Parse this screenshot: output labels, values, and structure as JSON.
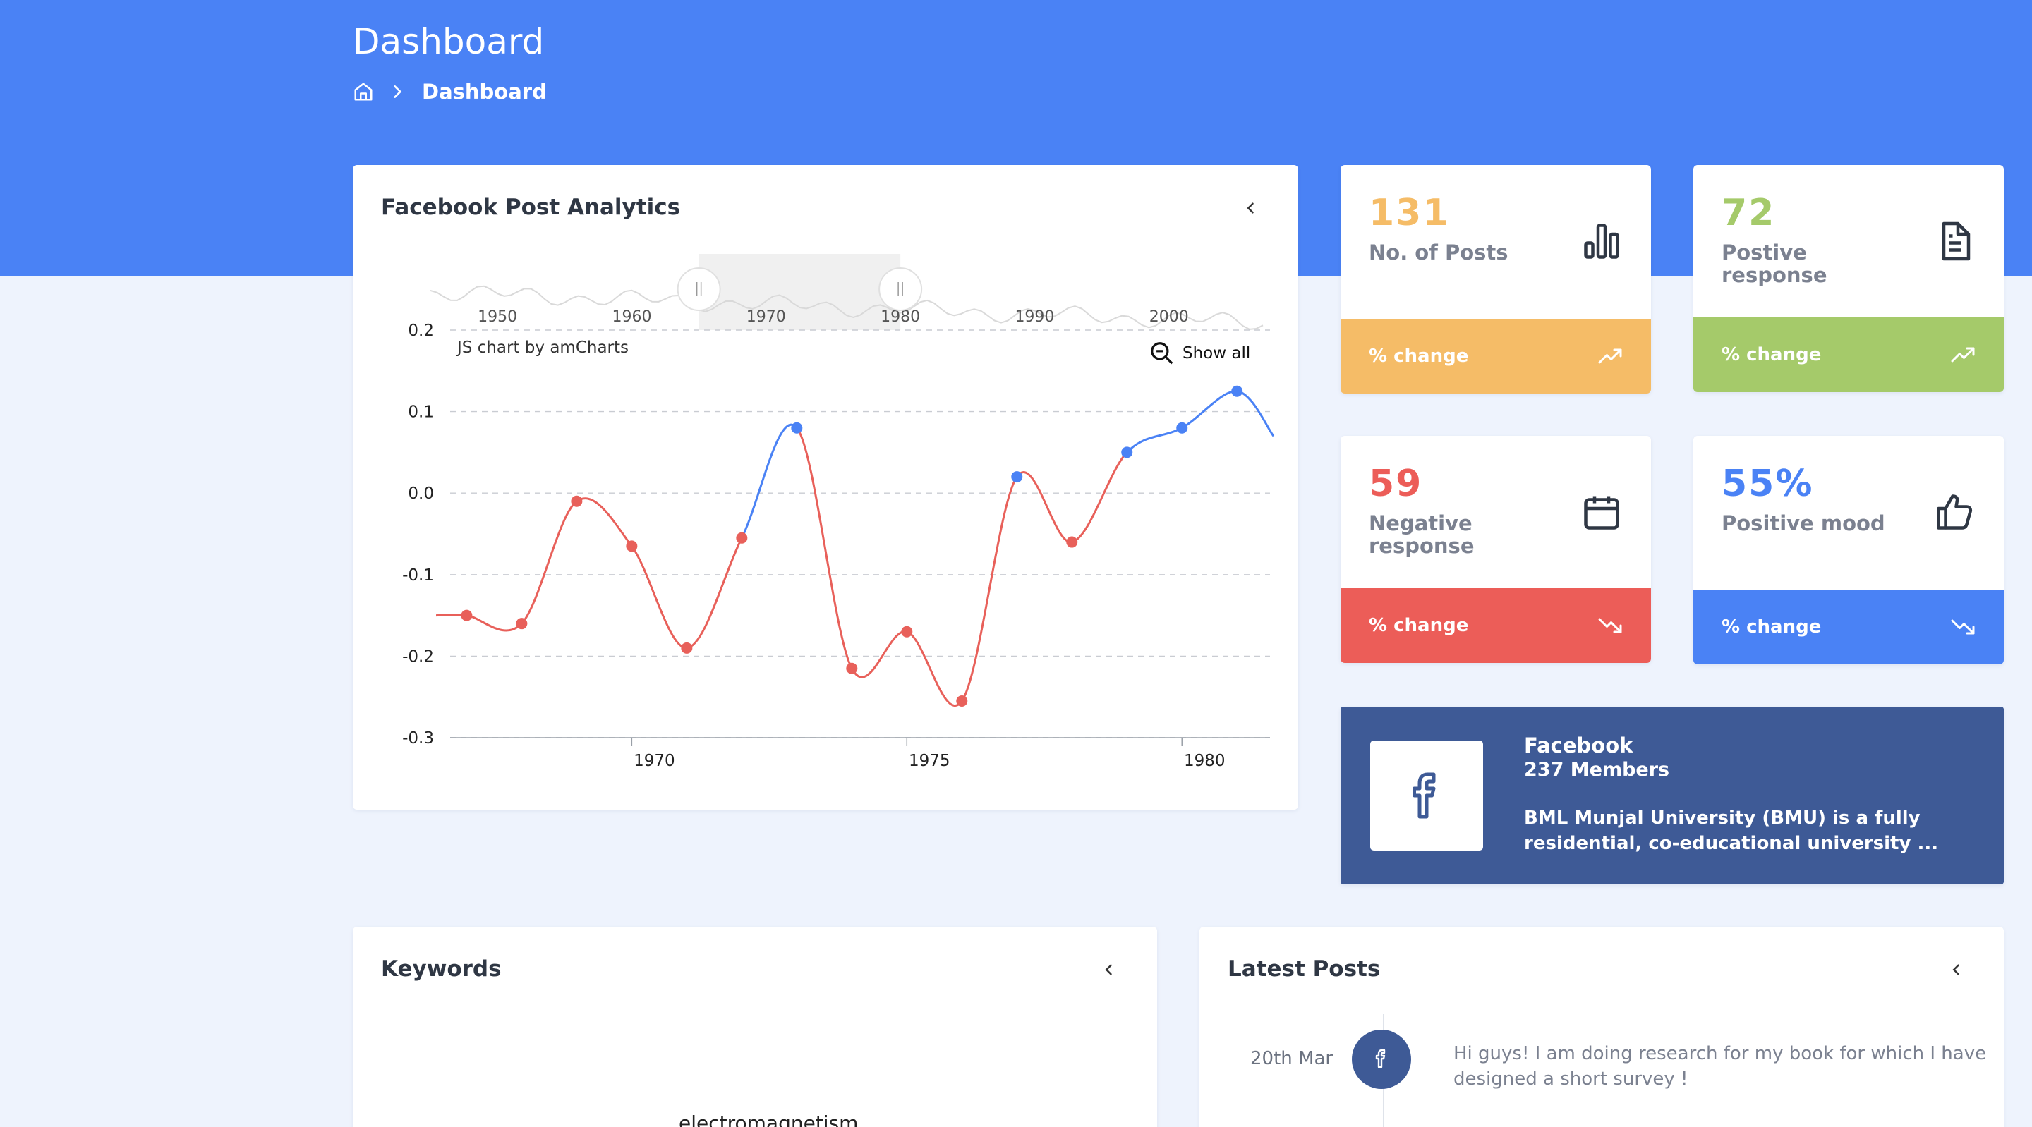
{
  "header": {
    "title": "Dashboard",
    "breadcrumb": {
      "home_icon": "home-icon",
      "current": "Dashboard"
    }
  },
  "analytics": {
    "title": "Facebook Post Analytics",
    "credit": "JS chart by amCharts",
    "show_all": "Show all"
  },
  "chart_data": {
    "type": "line",
    "title": "",
    "xlabel": "",
    "ylabel": "",
    "x_ticks": [
      "1970",
      "1975",
      "1980"
    ],
    "y_ticks": [
      "0.2",
      "0.1",
      "0.0",
      "-0.1",
      "-0.2",
      "-0.3"
    ],
    "ylim": [
      -0.3,
      0.2
    ],
    "xlim": [
      1966.7,
      1981.6
    ],
    "grid": true,
    "colors": {
      "negative": "#e8605a",
      "positive": "#4a82f5"
    },
    "points": [
      {
        "x": 1967.0,
        "y": -0.15
      },
      {
        "x": 1968.0,
        "y": -0.16
      },
      {
        "x": 1969.0,
        "y": -0.01
      },
      {
        "x": 1970.0,
        "y": -0.065
      },
      {
        "x": 1971.0,
        "y": -0.19
      },
      {
        "x": 1972.0,
        "y": -0.055
      },
      {
        "x": 1973.0,
        "y": 0.08
      },
      {
        "x": 1974.0,
        "y": -0.215
      },
      {
        "x": 1975.0,
        "y": -0.17
      },
      {
        "x": 1976.0,
        "y": -0.255
      },
      {
        "x": 1977.0,
        "y": 0.02
      },
      {
        "x": 1978.0,
        "y": -0.06
      },
      {
        "x": 1979.0,
        "y": 0.05
      },
      {
        "x": 1980.0,
        "y": 0.08
      },
      {
        "x": 1981.0,
        "y": 0.125
      }
    ],
    "scrollbar": {
      "ticks": [
        "1950",
        "1960",
        "1970",
        "1980",
        "1990",
        "2000"
      ],
      "range_start": 1965,
      "range_end": 1980
    }
  },
  "stats": [
    {
      "value": "131",
      "label": "No. of Posts",
      "footer": "% change",
      "icon": "bar-chart-icon",
      "trend": "trending-up-icon",
      "accent": "#f5bc67",
      "value_color": "#f5bc67"
    },
    {
      "value": "72",
      "label": "Postive response",
      "footer": "% change",
      "icon": "document-icon",
      "trend": "trending-up-icon",
      "accent": "#a5ca6a",
      "value_color": "#a5ca6a"
    },
    {
      "value": "59",
      "label": "Negative response",
      "footer": "% change",
      "icon": "calendar-icon",
      "trend": "trending-down-icon",
      "accent": "#ec5d58",
      "value_color": "#ec5d58"
    },
    {
      "value": "55%",
      "label": "Positive mood",
      "footer": "% change",
      "icon": "thumbs-up-icon",
      "trend": "trending-down-icon",
      "accent": "#4a82f5",
      "value_color": "#4a82f5"
    }
  ],
  "facebook_group": {
    "name": "Facebook",
    "members": "237 Members",
    "description": "BML Munjal University (BMU) is a fully residential, co-educational university ..."
  },
  "keywords": {
    "title": "Keywords",
    "first_word": "electromagnetism"
  },
  "latest_posts": {
    "title": "Latest Posts",
    "items": [
      {
        "date": "20th Mar",
        "text": "Hi guys! I am doing research for my book for which I have designed a short survey !"
      }
    ]
  }
}
